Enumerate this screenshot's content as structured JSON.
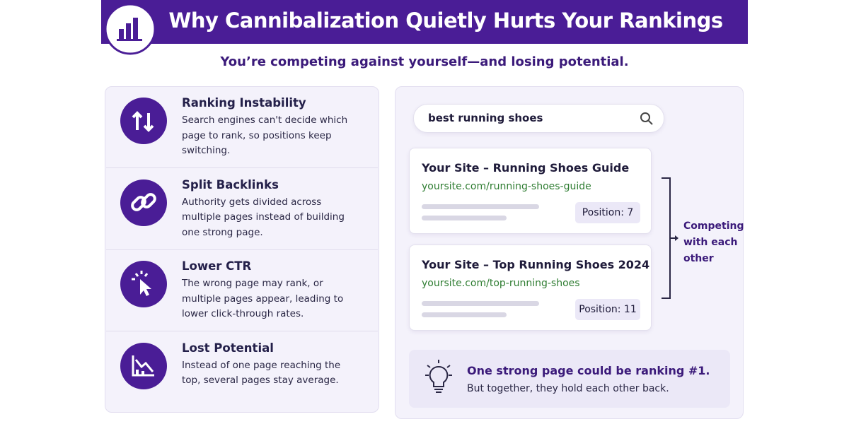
{
  "header": {
    "title": "Why Cannibalization Quietly Hurts Your Rankings",
    "subtitle": "You’re competing against yourself—and losing potential."
  },
  "issues": [
    {
      "title": "Ranking Instability",
      "description": "Search engines can't decide which page to rank, so positions keep switching."
    },
    {
      "title": "Split Backlinks",
      "description": "Authority gets divided across multiple pages instead of building one strong page."
    },
    {
      "title": "Lower CTR",
      "description": "The wrong page may rank, or multiple pages appear, leading to lower click-through rates."
    },
    {
      "title": "Lost Potential",
      "description": "Instead of one page reaching the top, several pages stay average."
    }
  ],
  "search": {
    "query": "best running shoes"
  },
  "results": [
    {
      "title": "Your Site – Running Shoes Guide",
      "url": "yoursite.com/running-shoes-guide",
      "position": "Position: 7"
    },
    {
      "title": "Your Site – Top Running Shoes 2024",
      "url": "yoursite.com/top-running-shoes",
      "position": "Position: 11"
    }
  ],
  "bracket_label": "Competing with each other",
  "tip": {
    "headline": "One strong page could be ranking #1.",
    "text": "But together, they hold each other back."
  }
}
